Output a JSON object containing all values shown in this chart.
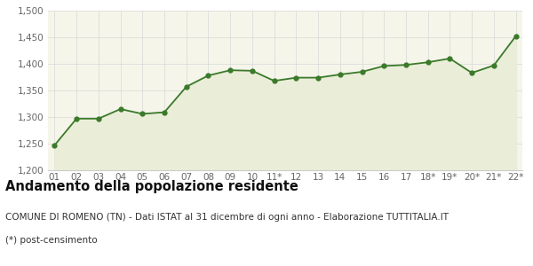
{
  "x_labels": [
    "01",
    "02",
    "03",
    "04",
    "05",
    "06",
    "07",
    "08",
    "09",
    "10",
    "11*",
    "12",
    "13",
    "14",
    "15",
    "16",
    "17",
    "18*",
    "19*",
    "20*",
    "21*",
    "22*"
  ],
  "y_values": [
    1247,
    1297,
    1297,
    1315,
    1306,
    1309,
    1357,
    1378,
    1388,
    1387,
    1368,
    1374,
    1374,
    1380,
    1385,
    1396,
    1398,
    1403,
    1410,
    1383,
    1397,
    1452
  ],
  "ylim": [
    1200,
    1500
  ],
  "yticks": [
    1200,
    1250,
    1300,
    1350,
    1400,
    1450,
    1500
  ],
  "line_color": "#3a7a2a",
  "fill_color": "#eaedd8",
  "marker_color": "#3a7a2a",
  "fig_bg_color": "#ffffff",
  "plot_bg_color": "#f5f5ea",
  "grid_color": "#d8d8d8",
  "spine_color": "#cccccc",
  "tick_color": "#666666",
  "title": "Andamento della popolazione residente",
  "subtitle": "COMUNE DI ROMENO (TN) - Dati ISTAT al 31 dicembre di ogni anno - Elaborazione TUTTITALIA.IT",
  "footnote": "(*) post-censimento",
  "title_fontsize": 10.5,
  "subtitle_fontsize": 7.5,
  "footnote_fontsize": 7.5,
  "tick_fontsize": 7.5
}
